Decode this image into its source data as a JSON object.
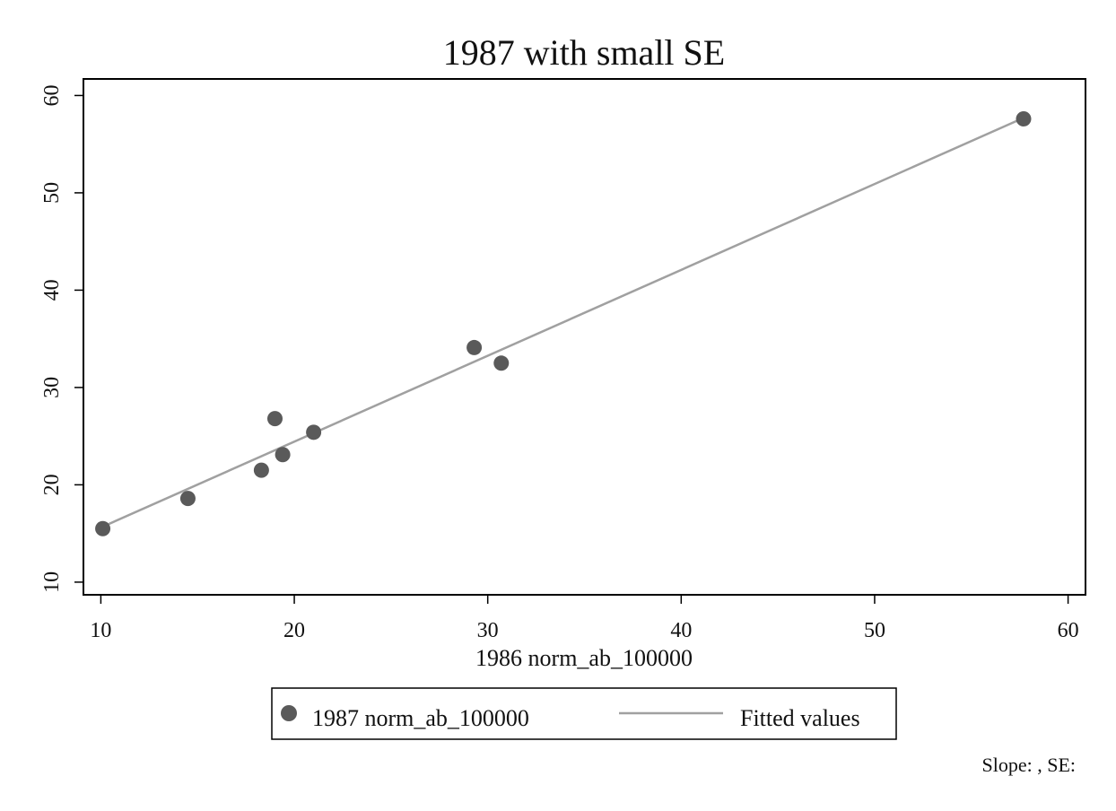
{
  "chart_data": {
    "type": "scatter",
    "title": "1987 with small SE",
    "xlabel": "1986 norm_ab_100000",
    "ylabel": "",
    "xlim": [
      9.1,
      60.9
    ],
    "ylim": [
      8.7,
      61.7
    ],
    "x_ticks": [
      "10",
      "20",
      "30",
      "40",
      "50",
      "60"
    ],
    "y_ticks": [
      "10",
      "20",
      "30",
      "40",
      "50",
      "60"
    ],
    "grid": false,
    "legend_position": "bottom",
    "series": [
      {
        "name": "1987 norm_ab_100000",
        "kind": "scatter",
        "color": "#5a5a5a",
        "points": [
          {
            "x": 10.1,
            "y": 15.5
          },
          {
            "x": 14.5,
            "y": 18.6
          },
          {
            "x": 18.3,
            "y": 21.5
          },
          {
            "x": 19.0,
            "y": 26.8
          },
          {
            "x": 19.4,
            "y": 23.1
          },
          {
            "x": 21.0,
            "y": 25.4
          },
          {
            "x": 29.3,
            "y": 34.1
          },
          {
            "x": 30.7,
            "y": 32.5
          },
          {
            "x": 57.7,
            "y": 57.6
          }
        ]
      },
      {
        "name": "Fitted values",
        "kind": "line",
        "color": "#a0a0a0",
        "points": [
          {
            "x": 10.1,
            "y": 15.7
          },
          {
            "x": 57.7,
            "y": 57.7
          }
        ]
      }
    ],
    "footnote": "Slope: , SE:"
  }
}
